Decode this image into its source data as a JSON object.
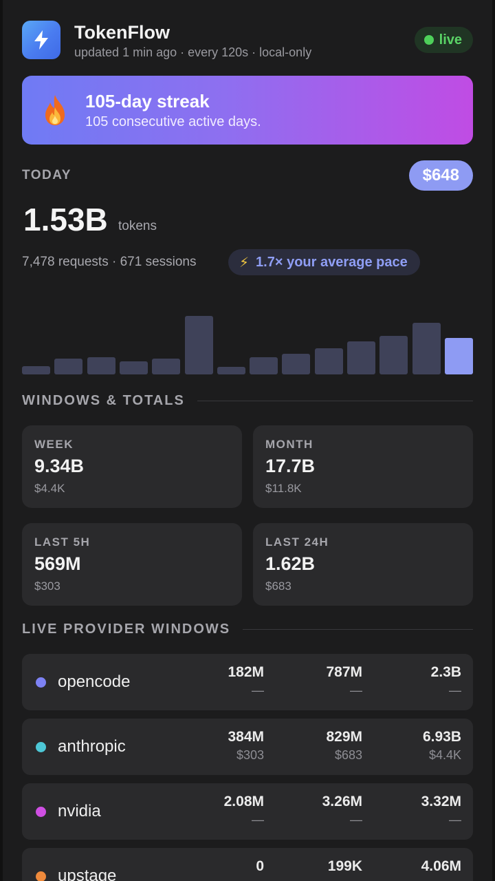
{
  "app": {
    "title": "TokenFlow",
    "subtitle": "updated 1 min ago · every 120s · local-only",
    "icon": "lightning-icon",
    "live_label": "live",
    "live_color": "#4ed05a"
  },
  "streak": {
    "icon": "fire-icon",
    "title": "105-day streak",
    "subtitle": "105 consecutive active days."
  },
  "today": {
    "label": "TODAY",
    "cost": "$648",
    "tokens": "1.53B",
    "tokens_unit": "tokens",
    "requests_line": "7,478 requests · 671 sessions",
    "pace_icon": "lightning-icon",
    "pace_text": "1.7× your average pace"
  },
  "chart_data": {
    "type": "bar",
    "values": [
      12,
      23,
      25,
      19,
      23,
      85,
      11,
      25,
      30,
      38,
      48,
      56,
      75,
      53
    ],
    "highlight_index": 13,
    "colors": {
      "bar": "#3f4259",
      "current": "#8e9bf3"
    }
  },
  "windows": {
    "section_label": "WINDOWS & TOTALS",
    "cards": [
      {
        "label": "WEEK",
        "value": "9.34B",
        "cost": "$4.4K"
      },
      {
        "label": "MONTH",
        "value": "17.7B",
        "cost": "$11.8K"
      },
      {
        "label": "LAST 5H",
        "value": "569M",
        "cost": "$303"
      },
      {
        "label": "LAST 24H",
        "value": "1.62B",
        "cost": "$683"
      }
    ]
  },
  "providers": {
    "section_label": "LIVE PROVIDER WINDOWS",
    "items": [
      {
        "name": "opencode",
        "color": "#7d82f4",
        "cols": [
          {
            "value": "182M",
            "sub": "—"
          },
          {
            "value": "787M",
            "sub": "—"
          },
          {
            "value": "2.3B",
            "sub": "—"
          }
        ]
      },
      {
        "name": "anthropic",
        "color": "#4dc7d6",
        "cols": [
          {
            "value": "384M",
            "sub": "$303"
          },
          {
            "value": "829M",
            "sub": "$683"
          },
          {
            "value": "6.93B",
            "sub": "$4.4K"
          }
        ]
      },
      {
        "name": "nvidia",
        "color": "#cf4fe3",
        "cols": [
          {
            "value": "2.08M",
            "sub": "—"
          },
          {
            "value": "3.26M",
            "sub": "—"
          },
          {
            "value": "3.32M",
            "sub": "—"
          }
        ]
      },
      {
        "name": "upstage",
        "color": "#ef8a3c",
        "cols": [
          {
            "value": "0",
            "sub": ""
          },
          {
            "value": "199K",
            "sub": ""
          },
          {
            "value": "4.06M",
            "sub": ""
          }
        ]
      }
    ]
  }
}
